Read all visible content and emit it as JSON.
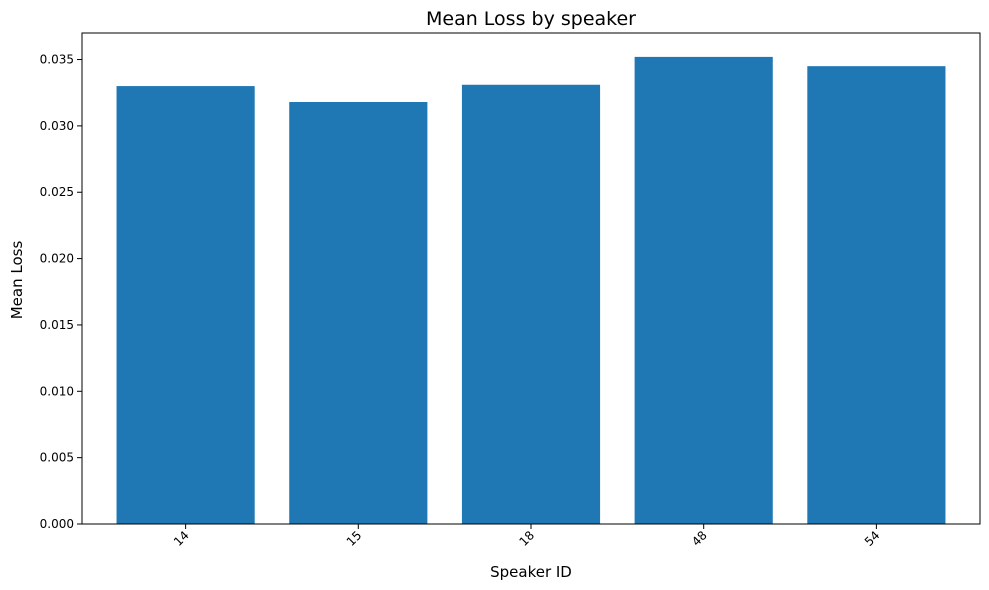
{
  "chart_data": {
    "type": "bar",
    "title": "Mean Loss by speaker",
    "xlabel": "Speaker ID",
    "ylabel": "Mean Loss",
    "categories": [
      "14",
      "15",
      "18",
      "48",
      "54"
    ],
    "values": [
      0.033,
      0.0318,
      0.0331,
      0.0352,
      0.0345
    ],
    "ylim": [
      0,
      0.037
    ],
    "yticks": [
      0.0,
      0.005,
      0.01,
      0.015,
      0.02,
      0.025,
      0.03,
      0.035
    ],
    "ytick_labels": [
      "0.000",
      "0.005",
      "0.010",
      "0.015",
      "0.020",
      "0.025",
      "0.030",
      "0.035"
    ],
    "bar_color": "#1f77b4",
    "grid": false,
    "legend": "none",
    "xtick_rotation_deg": 45
  }
}
